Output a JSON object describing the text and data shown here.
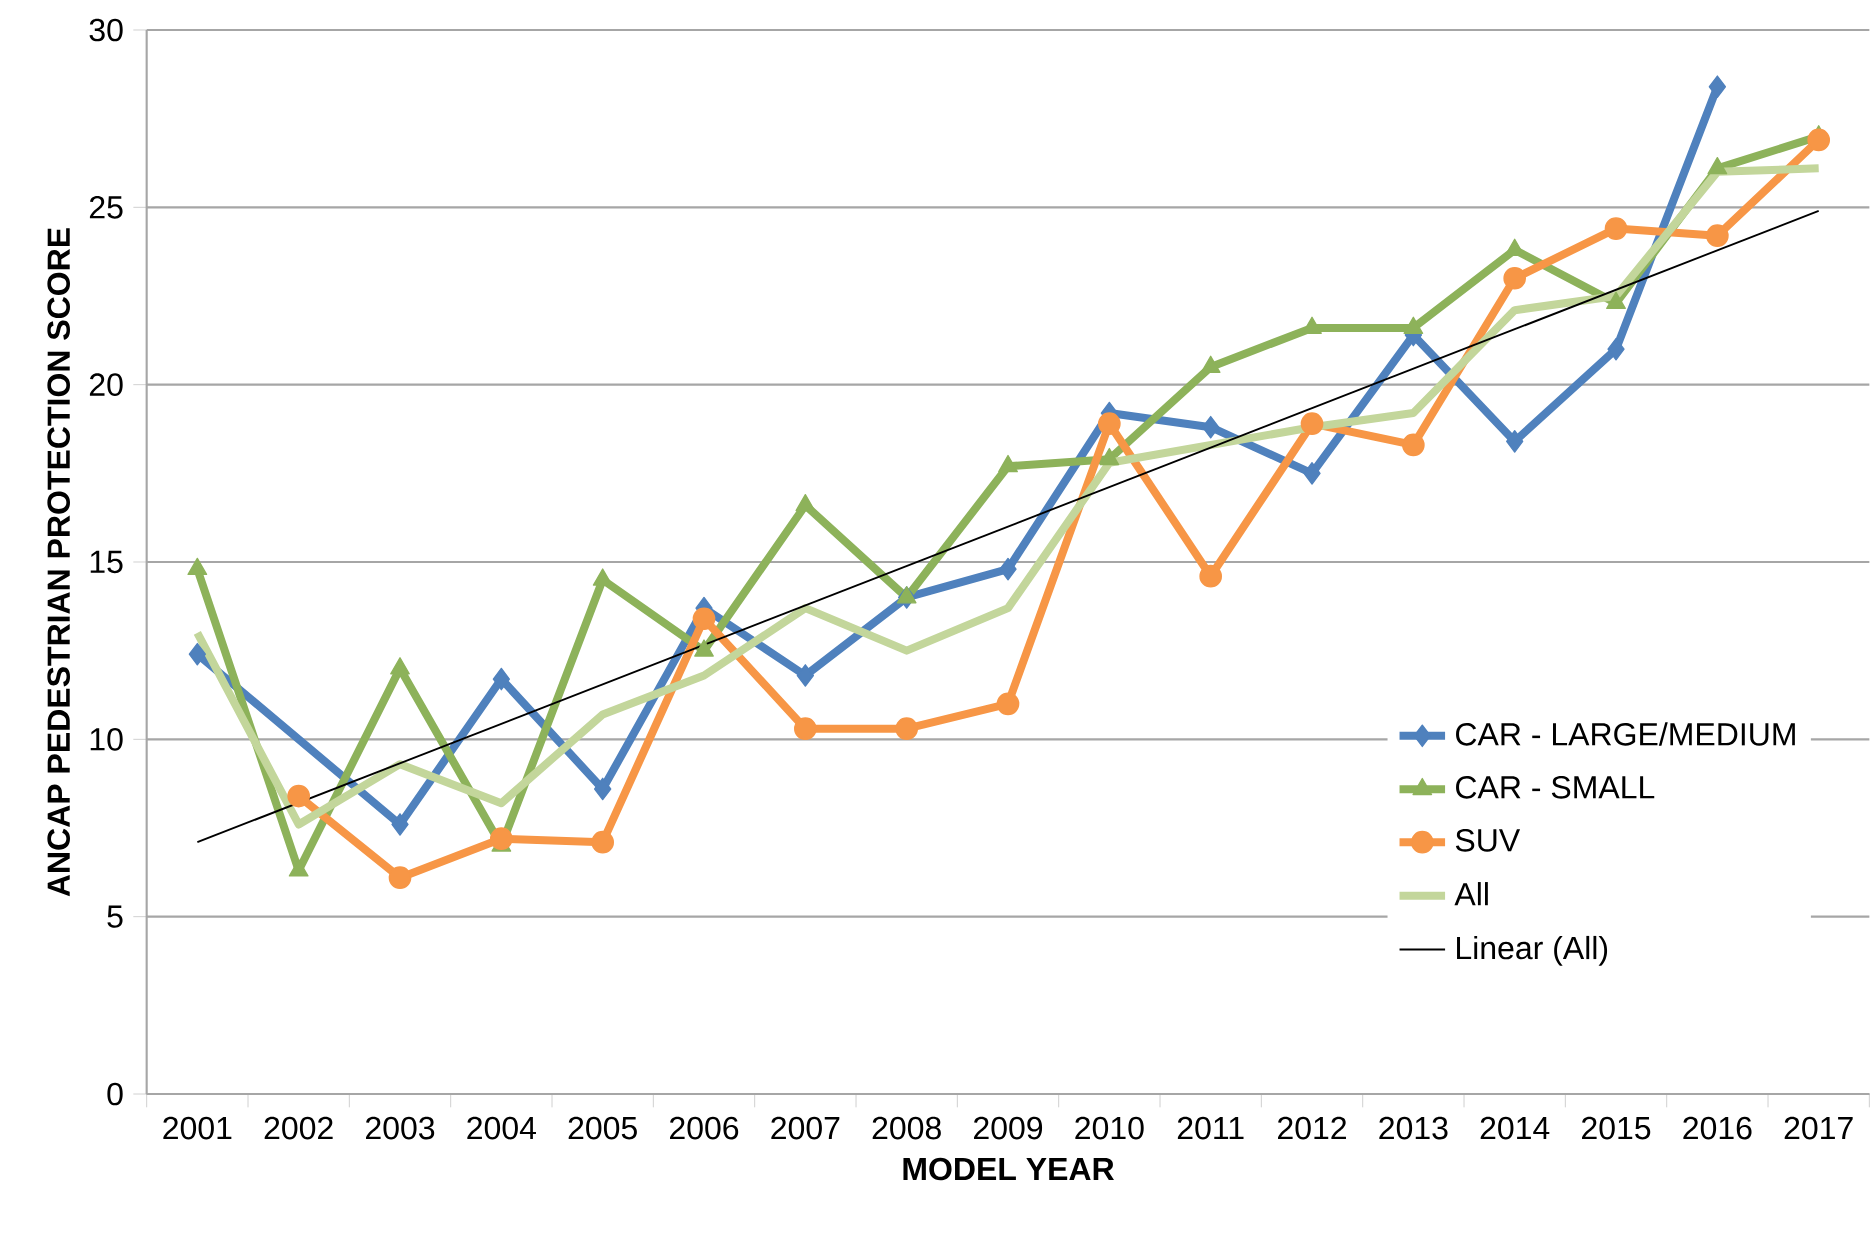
{
  "chart_data": {
    "type": "line",
    "xlabel": "MODEL YEAR",
    "ylabel": "ANCAP PEDESTRIAN PROTECTION SCORE",
    "categories": [
      "2001",
      "2002",
      "2003",
      "2004",
      "2005",
      "2006",
      "2007",
      "2008",
      "2009",
      "2010",
      "2011",
      "2012",
      "2013",
      "2014",
      "2015",
      "2016",
      "2017"
    ],
    "series": [
      {
        "name": "CAR - LARGE/MEDIUM",
        "color": "#4f81bd",
        "marker": "diamond",
        "values": [
          12.4,
          null,
          7.6,
          11.7,
          8.6,
          13.7,
          11.8,
          14.0,
          14.8,
          19.2,
          18.8,
          17.5,
          21.4,
          18.4,
          21.0,
          28.4,
          null
        ]
      },
      {
        "name": "CAR - SMALL",
        "color": "#8db25a",
        "marker": "triangle",
        "values": [
          14.8,
          6.3,
          12.0,
          7.0,
          14.5,
          12.5,
          16.6,
          14.0,
          17.7,
          17.9,
          20.5,
          21.6,
          21.6,
          23.8,
          22.3,
          26.1,
          27.0
        ]
      },
      {
        "name": "SUV",
        "color": "#f79646",
        "marker": "circle",
        "values": [
          null,
          8.4,
          6.1,
          7.2,
          7.1,
          13.4,
          10.3,
          10.3,
          11.0,
          18.9,
          14.6,
          18.9,
          18.3,
          23.0,
          24.4,
          24.2,
          26.9
        ]
      },
      {
        "name": "All",
        "color": "#c3d69b",
        "marker": "none",
        "values": [
          13.0,
          7.6,
          9.3,
          8.2,
          10.7,
          11.8,
          13.7,
          12.5,
          13.7,
          17.8,
          18.3,
          18.8,
          19.2,
          22.1,
          22.5,
          26.0,
          26.1
        ]
      },
      {
        "name": "Linear (All)",
        "color": "#000000",
        "marker": "none",
        "values": [
          7.1,
          null,
          null,
          null,
          null,
          null,
          null,
          null,
          null,
          null,
          null,
          null,
          null,
          null,
          null,
          null,
          24.9
        ]
      }
    ],
    "ylim": [
      0,
      30
    ],
    "yticks": [
      0,
      5,
      10,
      15,
      20,
      25,
      30
    ],
    "grid": "y",
    "legend": "right"
  }
}
